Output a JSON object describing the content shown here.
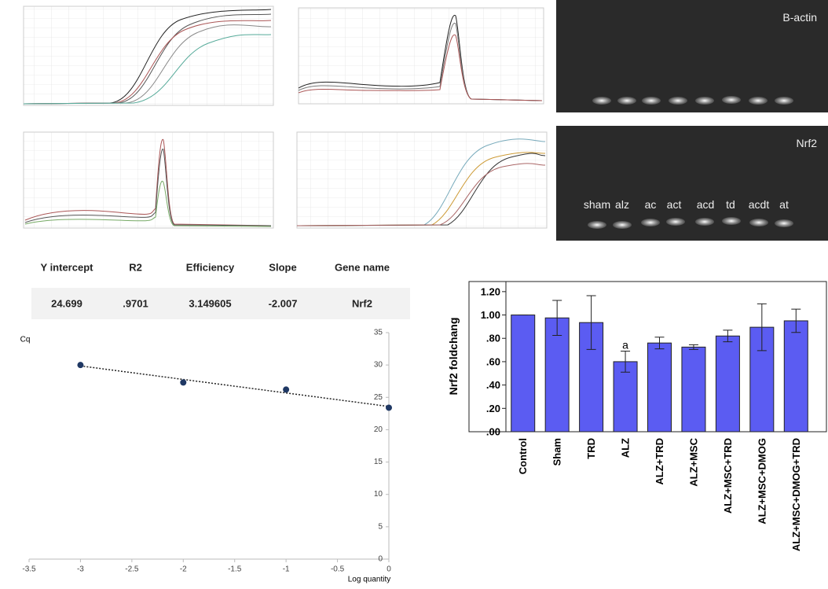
{
  "gels": [
    {
      "label": "B-actin"
    },
    {
      "label": "Nrf2",
      "lanes": [
        "sham",
        "alz",
        "ac",
        "act",
        "acd",
        "td",
        "acdt",
        "at"
      ]
    }
  ],
  "table": {
    "headers": [
      "Y intercept",
      "R2",
      "Efficiency",
      "Slope",
      "Gene name"
    ],
    "rows": [
      [
        "24.699",
        ".9701",
        "3.149605",
        "-2.007",
        "Nrf2"
      ]
    ]
  },
  "chart_data": [
    {
      "type": "scatter",
      "x_label": "Log quantity",
      "y_label": "Cq",
      "x": [
        -3,
        -2,
        -1,
        0
      ],
      "values": [
        30,
        27.3,
        26.2,
        23.4
      ],
      "color": "#1f3864",
      "trendline": true,
      "xlim": [
        -3.5,
        0
      ],
      "ylim": [
        0,
        35
      ],
      "xticks": [
        -3.5,
        -3,
        -2.5,
        -2,
        -1.5,
        -1,
        -0.5,
        0
      ],
      "yticks": [
        0,
        5,
        10,
        15,
        20,
        25,
        30,
        35
      ]
    },
    {
      "type": "bar",
      "y_label": "Nrf2 foldchang",
      "categories": [
        "Control",
        "Sham",
        "TRD",
        "ALZ",
        "ALZ+TRD",
        "ALZ+MSC",
        "ALZ+MSC+TRD",
        "ALZ+MSC+DMOG",
        "ALZ+MSC+DMOG+TRD"
      ],
      "values": [
        1.0,
        0.975,
        0.935,
        0.6,
        0.76,
        0.725,
        0.82,
        0.895,
        0.95
      ],
      "errors": [
        0.0,
        0.15,
        0.23,
        0.09,
        0.05,
        0.02,
        0.05,
        0.2,
        0.1
      ],
      "annotations": [
        {
          "category": "ALZ",
          "text": "a"
        }
      ],
      "color": "#5b5cf2",
      "ylim": [
        0,
        1.3
      ],
      "yticks": [
        {
          "value": 0,
          "label": ".00"
        },
        {
          "value": 0.2,
          "label": ".20"
        },
        {
          "value": 0.4,
          "label": ".40"
        },
        {
          "value": 0.6,
          "label": ".60"
        },
        {
          "value": 0.8,
          "label": ".80"
        },
        {
          "value": 1.0,
          "label": "1.00"
        },
        {
          "value": 1.2,
          "label": "1.20"
        }
      ]
    }
  ]
}
